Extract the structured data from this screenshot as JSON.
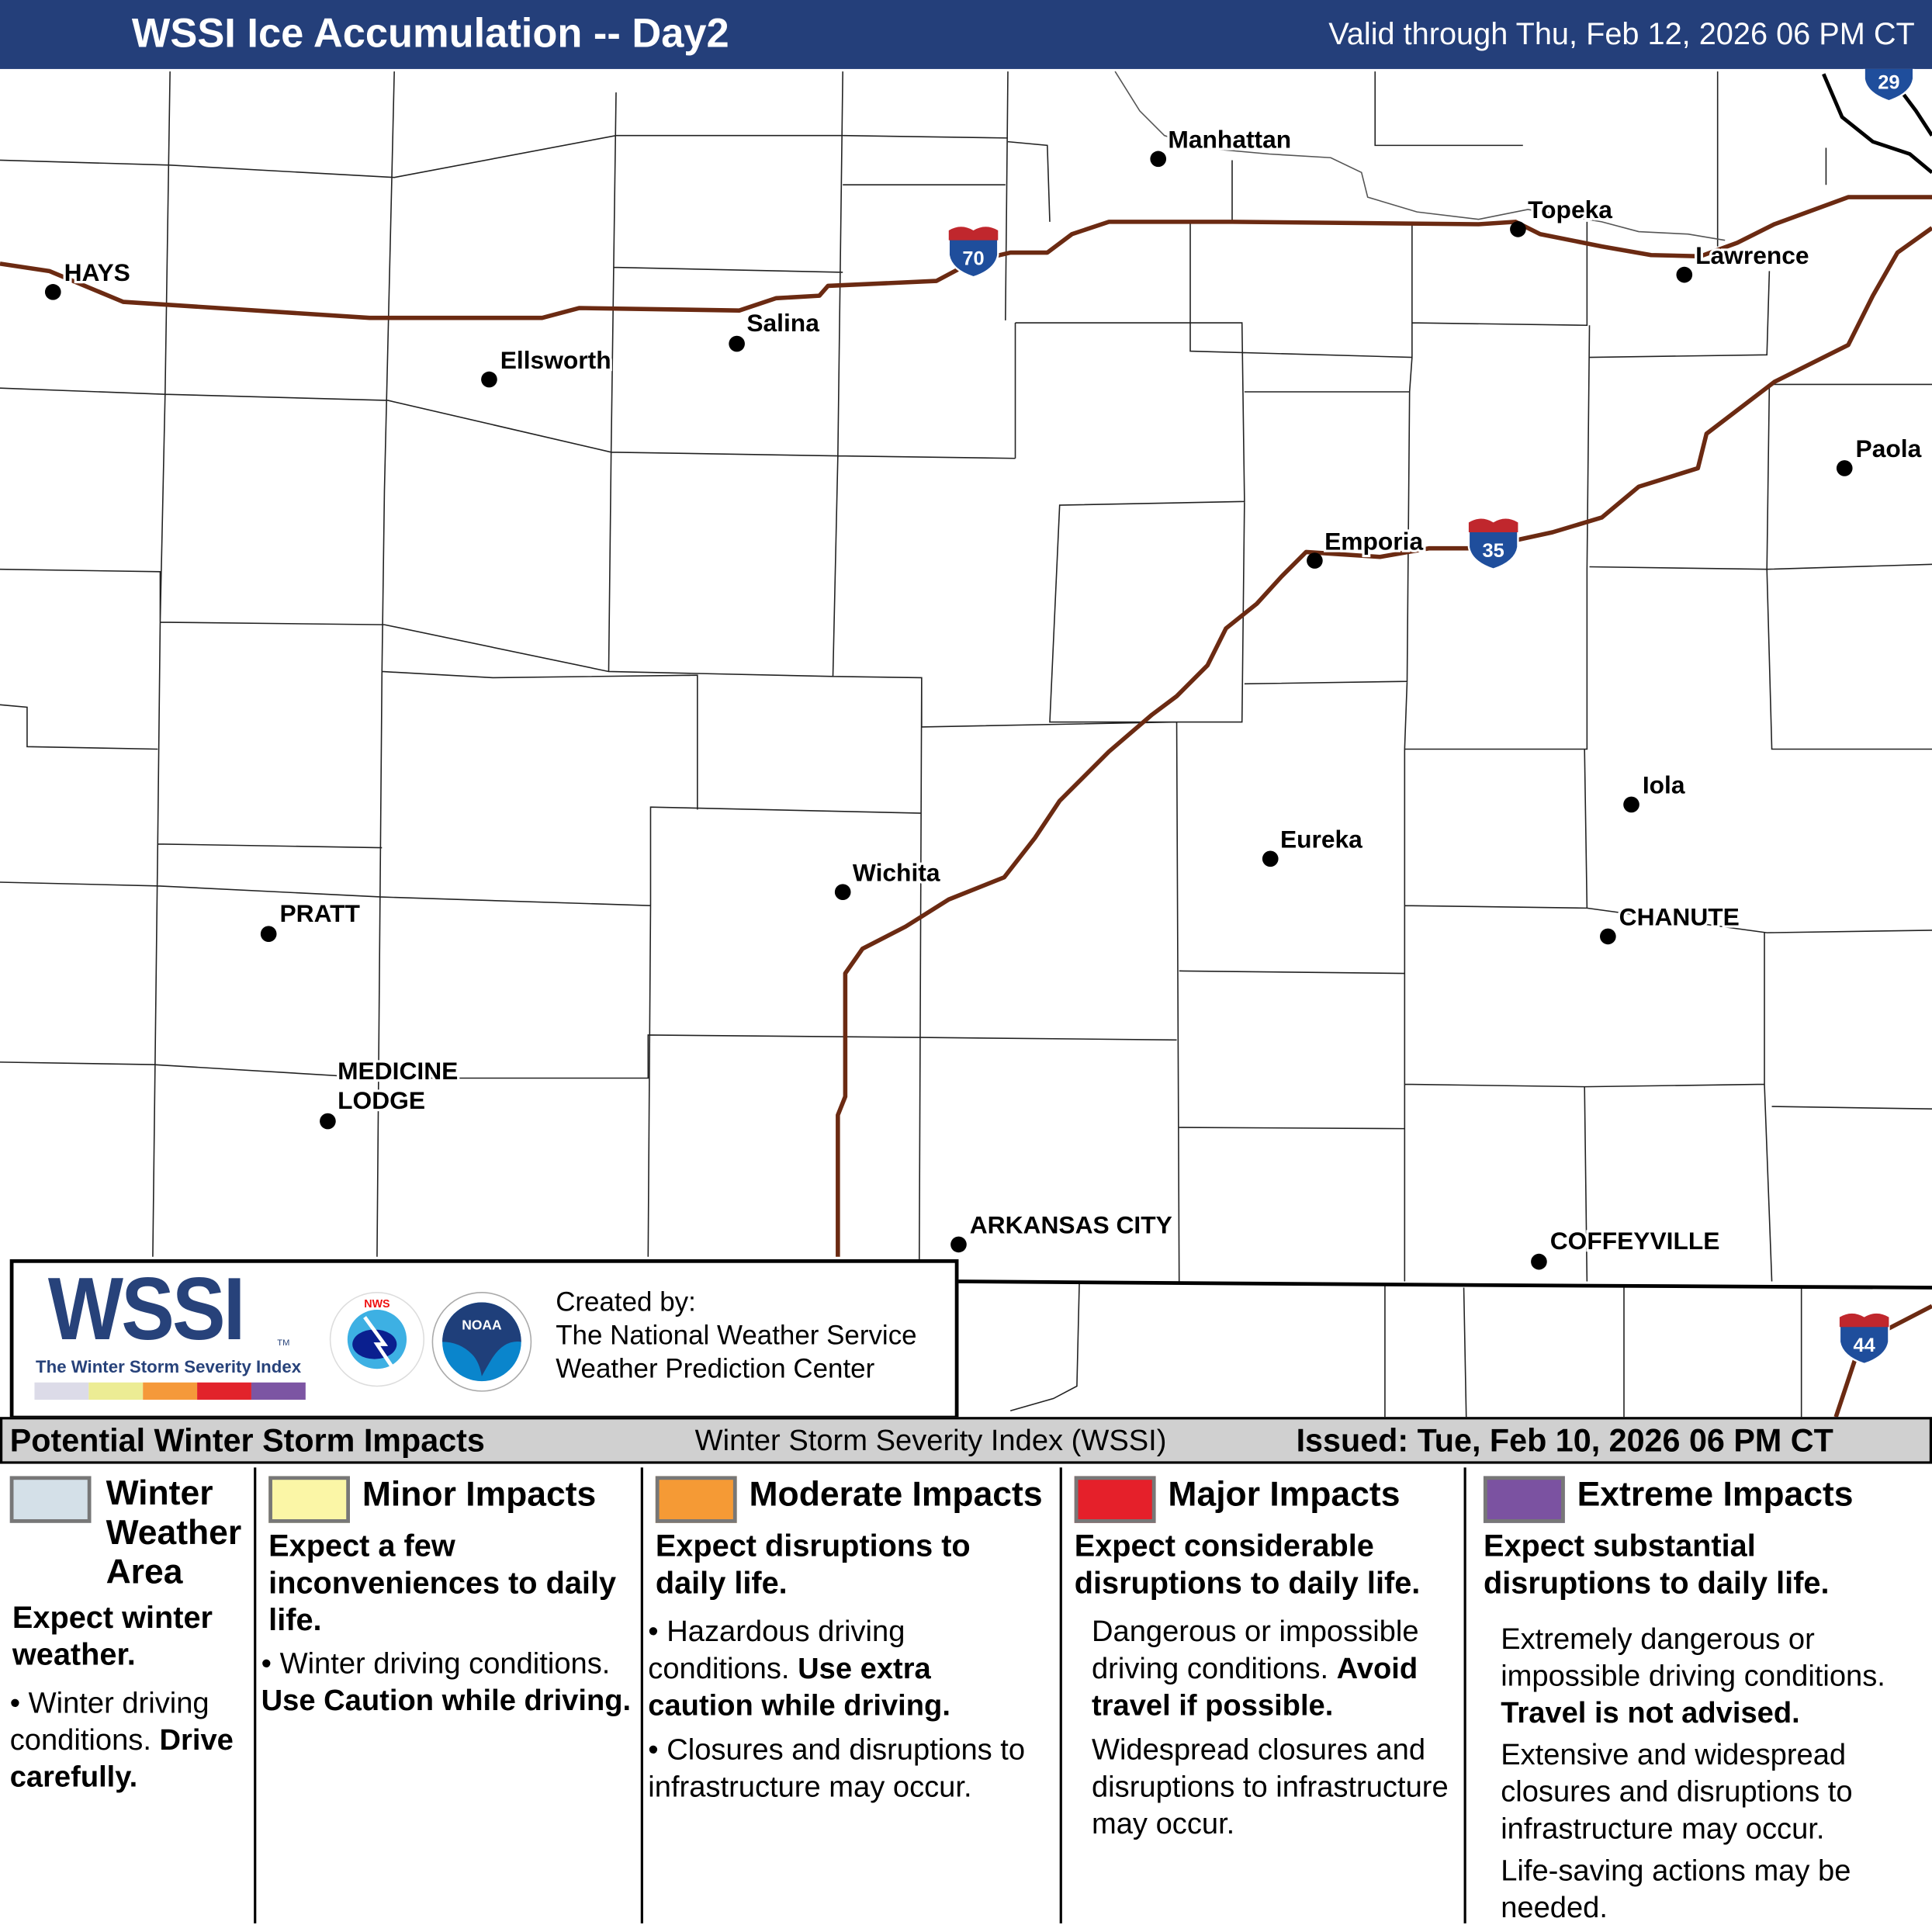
{
  "header": {
    "title": "WSSI Ice Accumulation -- Day2",
    "valid": "Valid through Thu, Feb 12, 2026 06 PM CT"
  },
  "map": {
    "cities": [
      "HAYS",
      "Ellsworth",
      "Salina",
      "Manhattan",
      "Topeka",
      "Lawrence",
      "Paola",
      "Emporia",
      "Wichita",
      "Eureka",
      "Iola",
      "CHANUTE",
      "PRATT",
      "MEDICINE",
      "LODGE",
      "ARKANSAS CITY",
      "COFFEYVILLE"
    ],
    "shields": [
      "70",
      "35",
      "44",
      "29"
    ],
    "colors": {
      "interstate": "#6b2a12",
      "shield_blue": "#1f4e9c",
      "shield_red": "#c0272d"
    }
  },
  "logo": {
    "wssi": "WSSI",
    "tm": "TM",
    "subtitle": "The Winter Storm Severity Index",
    "created_by": "Created by:",
    "org1": "The National Weather Service",
    "org2": "Weather Prediction Center",
    "nws_text": "NATIONAL WEATHER SERVICE",
    "noaa_text": "NOAA"
  },
  "band": {
    "left": "Potential Winter Storm Impacts",
    "center": "Winter Storm Severity Index (WSSI)",
    "right": "Issued: Tue, Feb 10, 2026 06 PM CT"
  },
  "legend": [
    {
      "title": "Winter Weather Area",
      "title1": "Winter",
      "title2": "Weather",
      "title3": "Area",
      "color": "#d4e0e8",
      "lead": "Expect winter weather.",
      "b1": "Winter driving conditions.",
      "b1bold": "Drive carefully."
    },
    {
      "title": "Minor Impacts",
      "color": "#fbf6a6",
      "lead": "Expect a few inconveniences to daily life.",
      "b1": "Winter driving conditions.",
      "b1bold": "Use Caution while driving."
    },
    {
      "title": "Moderate Impacts",
      "color": "#f59a35",
      "lead": "Expect disruptions to daily life.",
      "b1": "Hazardous driving conditions.",
      "b1bold": "Use extra caution while driving.",
      "b2": "Closures and disruptions to infrastructure may occur."
    },
    {
      "title": "Major Impacts",
      "color": "#e5202a",
      "lead": "Expect considerable disruptions to daily life.",
      "b1": "Dangerous or impossible driving conditions.",
      "b1bold": "Avoid travel if possible.",
      "b2": "Widespread closures and disruptions to infrastructure may occur."
    },
    {
      "title": "Extreme Impacts",
      "color": "#7b52a1",
      "lead": "Expect substantial disruptions to daily life.",
      "b1": "Extremely dangerous or impossible driving conditions.",
      "b1bold": "Travel is not advised.",
      "b2": "Extensive and widespread closures and disruptions to infrastructure may occur.",
      "b3": "Life-saving actions may be needed."
    }
  ],
  "wssi_scale_colors": [
    "#dcdbe8",
    "#ecec94",
    "#f5993a",
    "#e2232b",
    "#7c55a3"
  ]
}
